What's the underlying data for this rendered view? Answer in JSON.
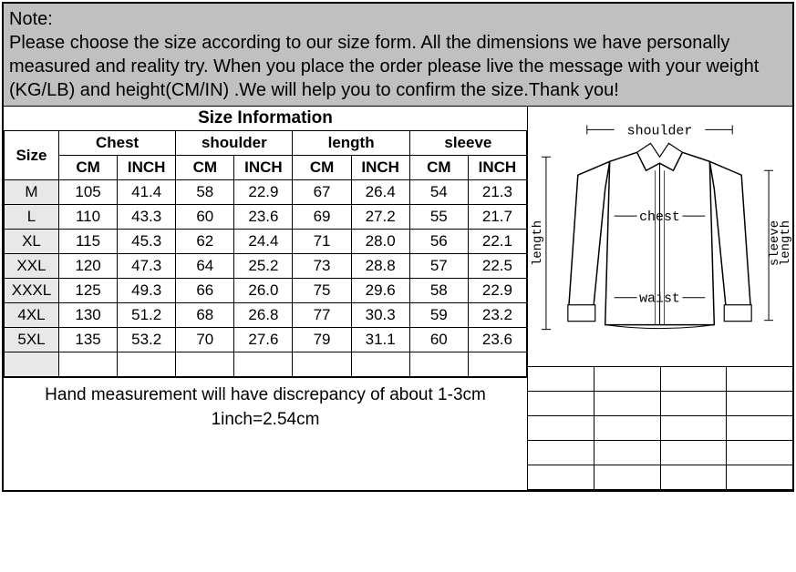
{
  "note": {
    "title": "Note:",
    "body": "Please choose the size according to our size form. All the dimensions we have personally measured and reality try. When you place the order please live the message with your weight (KG/LB) and height(CM/IN) .We will help you to confirm the size.Thank you!"
  },
  "table": {
    "title": "Size Information",
    "size_header": "Size",
    "groups": [
      "Chest",
      "shoulder",
      "length",
      "sleeve"
    ],
    "units": [
      "CM",
      "INCH"
    ],
    "rows": [
      {
        "size": "M",
        "values": [
          "105",
          "41.4",
          "58",
          "22.9",
          "67",
          "26.4",
          "54",
          "21.3"
        ]
      },
      {
        "size": "L",
        "values": [
          "110",
          "43.3",
          "60",
          "23.6",
          "69",
          "27.2",
          "55",
          "21.7"
        ]
      },
      {
        "size": "XL",
        "values": [
          "115",
          "45.3",
          "62",
          "24.4",
          "71",
          "28.0",
          "56",
          "22.1"
        ]
      },
      {
        "size": "XXL",
        "values": [
          "120",
          "47.3",
          "64",
          "25.2",
          "73",
          "28.8",
          "57",
          "22.5"
        ]
      },
      {
        "size": "XXXL",
        "values": [
          "125",
          "49.3",
          "66",
          "26.0",
          "75",
          "29.6",
          "58",
          "22.9"
        ]
      },
      {
        "size": "4XL",
        "values": [
          "130",
          "51.2",
          "68",
          "26.8",
          "77",
          "30.3",
          "59",
          "23.2"
        ]
      },
      {
        "size": "5XL",
        "values": [
          "135",
          "53.2",
          "70",
          "27.6",
          "79",
          "31.1",
          "60",
          "23.6"
        ]
      }
    ],
    "footer_line1": "Hand measurement will have discrepancy of about 1-3cm",
    "footer_line2": "1inch=2.54cm"
  },
  "diagram": {
    "labels": {
      "shoulder": "shoulder",
      "chest": "chest",
      "waist": "waist",
      "length": "length",
      "sleeve_length_1": "sleeve",
      "sleeve_length_2": "length"
    },
    "colors": {
      "stroke": "#000000",
      "fill": "#ffffff",
      "bg": "#ffffff"
    }
  },
  "styling": {
    "note_bg": "#c0c0c0",
    "size_label_bg": "#e8e8e8",
    "border_color": "#000000",
    "font_family": "Arial",
    "mono_font": "Courier New"
  }
}
